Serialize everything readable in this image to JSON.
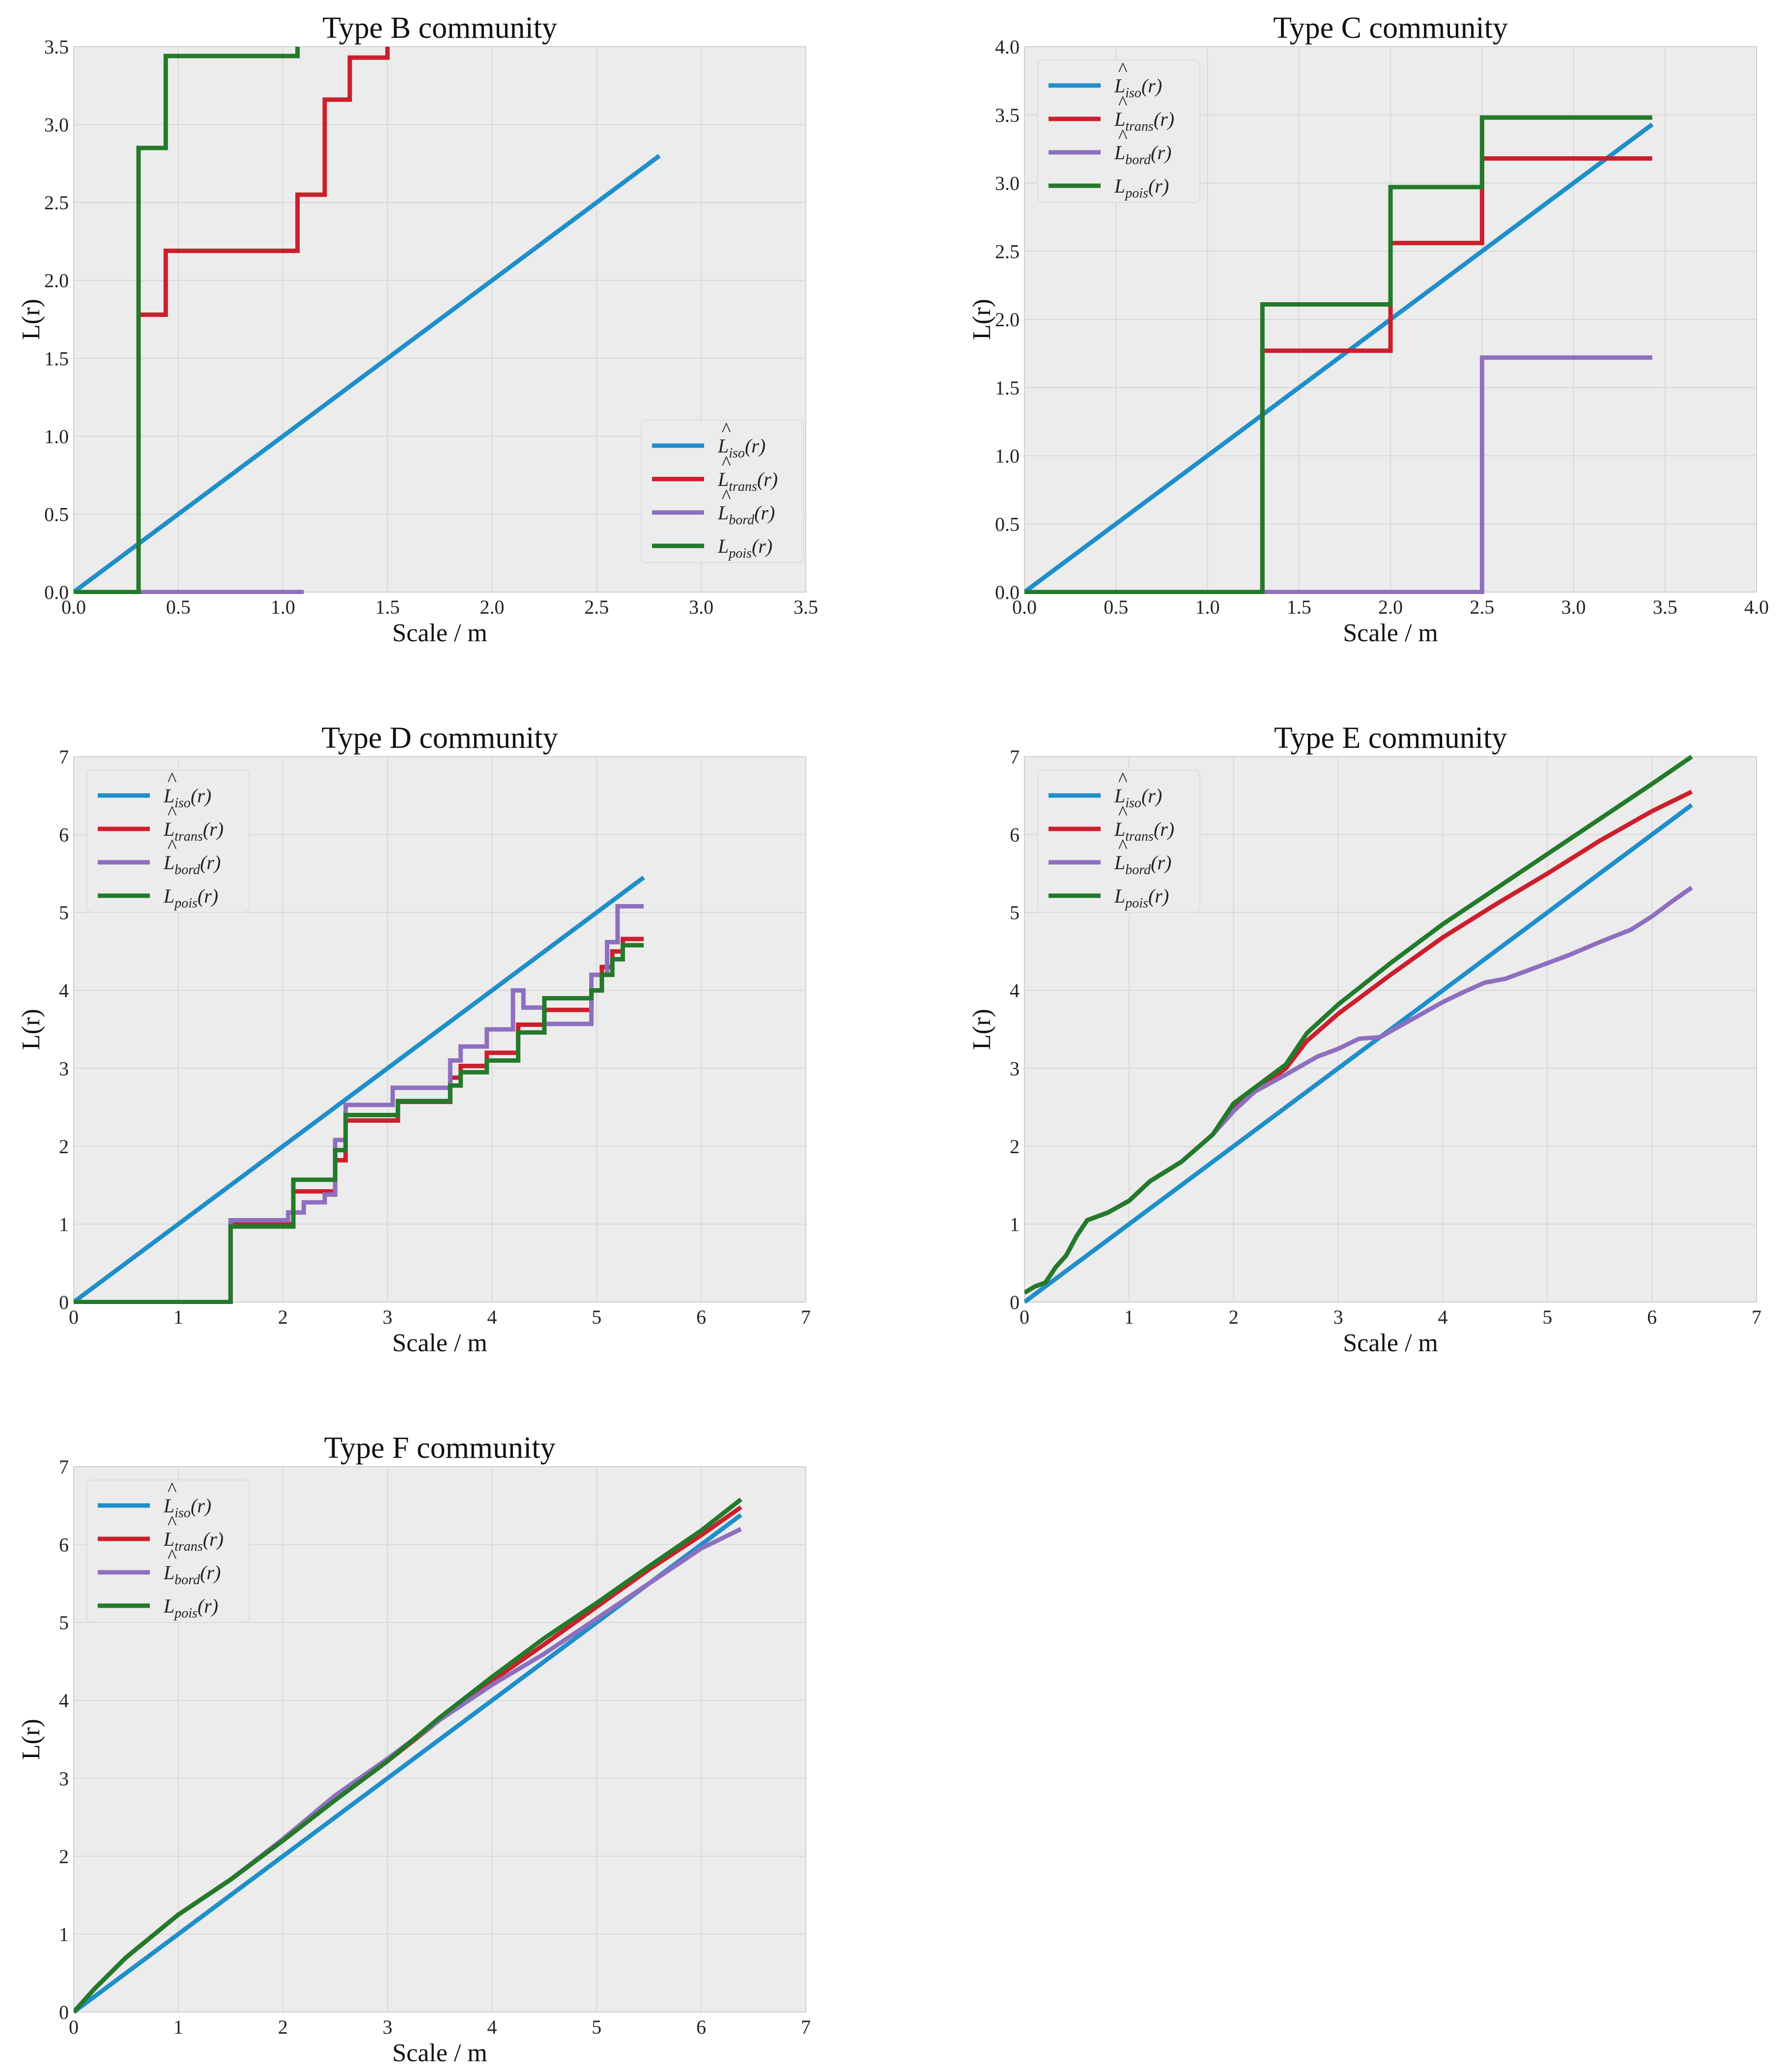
{
  "colors": {
    "iso": "#1f8fc9",
    "trans": "#cc1f2d",
    "bord": "#8e6fbf",
    "pois": "#237a2a",
    "plot_background": "#ececec",
    "grid": "#d8d8d8"
  },
  "legend_entries": {
    "iso": {
      "base": "L",
      "sub": "iso",
      "hat": true,
      "tail": "(r)"
    },
    "trans": {
      "base": "L",
      "sub": "trans",
      "hat": true,
      "tail": "(r)"
    },
    "bord": {
      "base": "L",
      "sub": "bord",
      "hat": true,
      "tail": "(r)"
    },
    "pois": {
      "base": "L",
      "sub": "pois",
      "hat": false,
      "tail": "(r)"
    }
  },
  "chart_data": [
    {
      "id": "b",
      "type": "line",
      "title": "Type B community",
      "xlabel": "Scale / m",
      "ylabel": "L(r)",
      "xlim": [
        0,
        3.5
      ],
      "ylim": [
        0,
        3.5
      ],
      "xticks": [
        "0.0",
        "0.5",
        "1.0",
        "1.5",
        "2.0",
        "2.5",
        "3.0",
        "3.5"
      ],
      "yticks": [
        "0.0",
        "0.5",
        "1.0",
        "1.5",
        "2.0",
        "2.5",
        "3.0",
        "3.5"
      ],
      "legend_position": "lower-right",
      "series": [
        {
          "key": "iso",
          "x": [
            0,
            2.8
          ],
          "y": [
            0,
            2.8
          ]
        },
        {
          "key": "trans",
          "x": [
            0,
            0.31,
            0.31,
            0.44,
            0.44,
            1.07,
            1.07,
            1.2,
            1.2,
            1.32,
            1.32,
            1.5,
            1.5
          ],
          "y": [
            0,
            0,
            1.78,
            1.78,
            2.19,
            2.19,
            2.55,
            2.55,
            3.16,
            3.16,
            3.43,
            3.43,
            3.5
          ]
        },
        {
          "key": "bord",
          "x": [
            0,
            1.1
          ],
          "y": [
            0,
            0
          ]
        },
        {
          "key": "pois",
          "x": [
            0,
            0.31,
            0.31,
            0.44,
            0.44,
            1.07,
            1.07
          ],
          "y": [
            0,
            0,
            2.85,
            2.85,
            3.44,
            3.44,
            3.5
          ]
        }
      ]
    },
    {
      "id": "c",
      "type": "line",
      "title": "Type C community",
      "xlabel": "Scale / m",
      "ylabel": "L(r)",
      "xlim": [
        0,
        4
      ],
      "ylim": [
        0,
        4
      ],
      "xticks": [
        "0.0",
        "0.5",
        "1.0",
        "1.5",
        "2.0",
        "2.5",
        "3.0",
        "3.5",
        "4.0"
      ],
      "yticks": [
        "0.0",
        "0.5",
        "1.0",
        "1.5",
        "2.0",
        "2.5",
        "3.0",
        "3.5",
        "4.0"
      ],
      "legend_position": "upper-left",
      "series": [
        {
          "key": "iso",
          "x": [
            0,
            3.43
          ],
          "y": [
            0,
            3.43
          ]
        },
        {
          "key": "trans",
          "x": [
            0,
            1.3,
            1.3,
            2.0,
            2.0,
            2.5,
            2.5,
            3.43
          ],
          "y": [
            0,
            0,
            1.77,
            1.77,
            2.56,
            2.56,
            3.18,
            3.18
          ]
        },
        {
          "key": "bord",
          "x": [
            0,
            2.5,
            2.5,
            3.43
          ],
          "y": [
            0,
            0,
            1.72,
            1.72
          ]
        },
        {
          "key": "pois",
          "x": [
            0,
            1.3,
            1.3,
            2.0,
            2.0,
            2.5,
            2.5,
            3.43
          ],
          "y": [
            0,
            0,
            2.11,
            2.11,
            2.97,
            2.97,
            3.48,
            3.48
          ]
        }
      ]
    },
    {
      "id": "d",
      "type": "line",
      "title": "Type D community",
      "xlabel": "Scale / m",
      "ylabel": "L(r)",
      "xlim": [
        0,
        7
      ],
      "ylim": [
        0,
        7
      ],
      "xticks": [
        "0",
        "1",
        "2",
        "3",
        "4",
        "5",
        "6",
        "7"
      ],
      "yticks": [
        "0",
        "1",
        "2",
        "3",
        "4",
        "5",
        "6",
        "7"
      ],
      "legend_position": "upper-left",
      "series": [
        {
          "key": "iso",
          "x": [
            0,
            5.45
          ],
          "y": [
            0,
            5.45
          ]
        },
        {
          "key": "trans",
          "x": [
            0,
            1.5,
            1.5,
            2.1,
            2.1,
            2.5,
            2.5,
            2.6,
            2.6,
            3.1,
            3.1,
            3.6,
            3.6,
            3.7,
            3.7,
            3.95,
            3.95,
            4.25,
            4.25,
            4.5,
            4.5,
            4.95,
            4.95,
            5.05,
            5.05,
            5.15,
            5.15,
            5.25,
            5.25,
            5.45
          ],
          "y": [
            0,
            0,
            1.0,
            1.0,
            1.42,
            1.42,
            1.82,
            1.82,
            2.33,
            2.33,
            2.57,
            2.57,
            2.88,
            2.88,
            3.03,
            3.03,
            3.2,
            3.2,
            3.56,
            3.56,
            3.75,
            3.75,
            4.0,
            4.0,
            4.3,
            4.3,
            4.5,
            4.5,
            4.66,
            4.66
          ]
        },
        {
          "key": "bord",
          "x": [
            0,
            1.5,
            1.5,
            2.05,
            2.05,
            2.2,
            2.2,
            2.4,
            2.4,
            2.5,
            2.5,
            2.6,
            2.6,
            3.05,
            3.05,
            3.6,
            3.6,
            3.7,
            3.7,
            3.95,
            3.95,
            4.2,
            4.2,
            4.3,
            4.3,
            4.5,
            4.5,
            4.95,
            4.95,
            5.1,
            5.1,
            5.2,
            5.2,
            5.45
          ],
          "y": [
            0,
            0,
            1.05,
            1.05,
            1.15,
            1.15,
            1.28,
            1.28,
            1.38,
            1.38,
            2.08,
            2.08,
            2.53,
            2.53,
            2.75,
            2.75,
            3.1,
            3.1,
            3.28,
            3.28,
            3.5,
            3.5,
            4.0,
            4.0,
            3.78,
            3.78,
            3.57,
            3.57,
            4.2,
            4.2,
            4.62,
            4.62,
            5.08,
            5.08
          ]
        },
        {
          "key": "pois",
          "x": [
            0,
            1.5,
            1.5,
            2.1,
            2.1,
            2.5,
            2.5,
            2.6,
            2.6,
            3.1,
            3.1,
            3.6,
            3.6,
            3.7,
            3.7,
            3.95,
            3.95,
            4.25,
            4.25,
            4.5,
            4.5,
            4.95,
            4.95,
            5.05,
            5.05,
            5.15,
            5.15,
            5.25,
            5.25,
            5.45
          ],
          "y": [
            0,
            0,
            0.97,
            0.97,
            1.57,
            1.57,
            1.95,
            1.95,
            2.4,
            2.4,
            2.58,
            2.58,
            2.78,
            2.78,
            2.95,
            2.95,
            3.1,
            3.1,
            3.46,
            3.46,
            3.9,
            3.9,
            4.0,
            4.0,
            4.2,
            4.2,
            4.4,
            4.4,
            4.58,
            4.58
          ]
        }
      ]
    },
    {
      "id": "e",
      "type": "line",
      "title": "Type E community",
      "xlabel": "Scale / m",
      "ylabel": "L(r)",
      "xlim": [
        0,
        7
      ],
      "ylim": [
        0,
        7
      ],
      "xticks": [
        "0",
        "1",
        "2",
        "3",
        "4",
        "5",
        "6",
        "7"
      ],
      "yticks": [
        "0",
        "1",
        "2",
        "3",
        "4",
        "5",
        "6",
        "7"
      ],
      "legend_position": "upper-left",
      "series": [
        {
          "key": "iso",
          "x": [
            0,
            6.38
          ],
          "y": [
            0,
            6.38
          ]
        },
        {
          "key": "trans",
          "x": [
            0,
            0.1,
            0.2,
            0.3,
            0.4,
            0.5,
            0.6,
            0.8,
            1.0,
            1.2,
            1.5,
            1.8,
            2.0,
            2.3,
            2.5,
            2.7,
            3.0,
            3.5,
            4.0,
            4.5,
            5.0,
            5.5,
            6.0,
            6.38
          ],
          "y": [
            0.12,
            0.2,
            0.25,
            0.45,
            0.6,
            0.85,
            1.05,
            1.15,
            1.3,
            1.55,
            1.8,
            2.15,
            2.5,
            2.8,
            3.0,
            3.35,
            3.7,
            4.2,
            4.68,
            5.1,
            5.5,
            5.92,
            6.3,
            6.55
          ]
        },
        {
          "key": "bord",
          "x": [
            0,
            0.1,
            0.2,
            0.3,
            0.4,
            0.5,
            0.6,
            0.8,
            1.0,
            1.2,
            1.5,
            1.8,
            2.0,
            2.2,
            2.5,
            2.8,
            3.0,
            3.2,
            3.4,
            3.6,
            3.8,
            4.0,
            4.2,
            4.4,
            4.6,
            4.8,
            5.0,
            5.2,
            5.5,
            5.8,
            6.0,
            6.2,
            6.38
          ],
          "y": [
            0.12,
            0.2,
            0.25,
            0.45,
            0.6,
            0.85,
            1.05,
            1.15,
            1.3,
            1.55,
            1.8,
            2.15,
            2.45,
            2.7,
            2.92,
            3.15,
            3.25,
            3.38,
            3.4,
            3.55,
            3.7,
            3.85,
            3.98,
            4.1,
            4.15,
            4.25,
            4.35,
            4.45,
            4.62,
            4.78,
            4.95,
            5.15,
            5.32
          ]
        },
        {
          "key": "pois",
          "x": [
            0,
            0.1,
            0.2,
            0.3,
            0.4,
            0.5,
            0.6,
            0.8,
            1.0,
            1.2,
            1.5,
            1.8,
            2.0,
            2.3,
            2.5,
            2.7,
            3.0,
            3.5,
            4.0,
            4.5,
            5.0,
            5.5,
            6.0,
            6.38
          ],
          "y": [
            0.12,
            0.2,
            0.25,
            0.45,
            0.6,
            0.85,
            1.05,
            1.15,
            1.3,
            1.55,
            1.8,
            2.15,
            2.55,
            2.85,
            3.05,
            3.45,
            3.82,
            4.35,
            4.85,
            5.3,
            5.75,
            6.2,
            6.65,
            7.0
          ]
        }
      ]
    },
    {
      "id": "f",
      "type": "line",
      "title": "Type F community",
      "xlabel": "Scale / m",
      "ylabel": "L(r)",
      "xlim": [
        0,
        7
      ],
      "ylim": [
        0,
        7
      ],
      "xticks": [
        "0",
        "1",
        "2",
        "3",
        "4",
        "5",
        "6",
        "7"
      ],
      "yticks": [
        "0",
        "1",
        "2",
        "3",
        "4",
        "5",
        "6",
        "7"
      ],
      "legend_position": "upper-left",
      "series": [
        {
          "key": "iso",
          "x": [
            0,
            6.38
          ],
          "y": [
            0,
            6.38
          ]
        },
        {
          "key": "trans",
          "x": [
            0,
            0.2,
            0.5,
            1.0,
            1.5,
            2.0,
            2.5,
            3.0,
            3.5,
            4.0,
            4.5,
            5.0,
            5.5,
            6.0,
            6.38
          ],
          "y": [
            0,
            0.3,
            0.7,
            1.25,
            1.7,
            2.2,
            2.72,
            3.22,
            3.75,
            4.25,
            4.72,
            5.2,
            5.68,
            6.12,
            6.48
          ]
        },
        {
          "key": "bord",
          "x": [
            0,
            0.2,
            0.5,
            1.0,
            1.5,
            2.0,
            2.5,
            3.0,
            3.5,
            4.0,
            4.5,
            5.0,
            5.5,
            6.0,
            6.38
          ],
          "y": [
            0,
            0.3,
            0.7,
            1.25,
            1.7,
            2.22,
            2.78,
            3.25,
            3.75,
            4.2,
            4.6,
            5.05,
            5.5,
            5.95,
            6.2
          ]
        },
        {
          "key": "pois",
          "x": [
            0,
            0.2,
            0.5,
            1.0,
            1.5,
            2.0,
            2.5,
            3.0,
            3.5,
            4.0,
            4.5,
            5.0,
            5.5,
            6.0,
            6.38
          ],
          "y": [
            0,
            0.3,
            0.7,
            1.25,
            1.7,
            2.2,
            2.72,
            3.22,
            3.78,
            4.3,
            4.8,
            5.25,
            5.72,
            6.18,
            6.58
          ]
        }
      ]
    }
  ]
}
